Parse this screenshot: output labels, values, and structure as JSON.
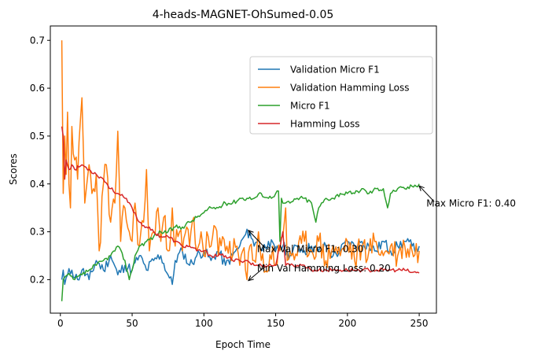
{
  "chart_data": {
    "type": "line",
    "title": "4-heads-MAGNET-OhSumed-0.05",
    "xlabel": "Epoch Time",
    "ylabel": "Scores",
    "xlim": [
      -7,
      262
    ],
    "ylim": [
      0.13,
      0.73
    ],
    "xticks": [
      0,
      50,
      100,
      150,
      200,
      250
    ],
    "yticks": [
      0.2,
      0.3,
      0.4,
      0.5,
      0.6,
      0.7
    ],
    "tick_labels_x": [
      "0",
      "50",
      "100",
      "150",
      "200",
      "250"
    ],
    "tick_labels_y": [
      "0.2",
      "0.3",
      "0.4",
      "0.5",
      "0.6",
      "0.7"
    ],
    "grid": false,
    "legend_position": "upper right",
    "series": [
      {
        "name": "Validation Micro F1",
        "color": "#1f77b4",
        "anchors": [
          [
            1,
            0.2
          ],
          [
            2,
            0.22
          ],
          [
            3,
            0.19
          ],
          [
            5,
            0.21
          ],
          [
            8,
            0.22
          ],
          [
            12,
            0.2
          ],
          [
            15,
            0.22
          ],
          [
            20,
            0.2
          ],
          [
            25,
            0.24
          ],
          [
            30,
            0.22
          ],
          [
            35,
            0.25
          ],
          [
            40,
            0.21
          ],
          [
            45,
            0.23
          ],
          [
            50,
            0.22
          ],
          [
            55,
            0.25
          ],
          [
            60,
            0.22
          ],
          [
            65,
            0.24
          ],
          [
            70,
            0.25
          ],
          [
            75,
            0.21
          ],
          [
            78,
            0.19
          ],
          [
            80,
            0.24
          ],
          [
            85,
            0.26
          ],
          [
            90,
            0.23
          ],
          [
            95,
            0.25
          ],
          [
            100,
            0.26
          ],
          [
            105,
            0.24
          ],
          [
            110,
            0.26
          ],
          [
            115,
            0.23
          ],
          [
            120,
            0.25
          ],
          [
            125,
            0.27
          ],
          [
            128,
            0.29
          ],
          [
            132,
            0.3
          ],
          [
            135,
            0.27
          ],
          [
            138,
            0.29
          ],
          [
            140,
            0.26
          ],
          [
            145,
            0.28
          ],
          [
            150,
            0.26
          ],
          [
            155,
            0.27
          ],
          [
            160,
            0.25
          ],
          [
            165,
            0.27
          ],
          [
            170,
            0.26
          ],
          [
            175,
            0.27
          ],
          [
            180,
            0.26
          ],
          [
            185,
            0.27
          ],
          [
            190,
            0.25
          ],
          [
            195,
            0.26
          ],
          [
            200,
            0.28
          ],
          [
            205,
            0.27
          ],
          [
            210,
            0.28
          ],
          [
            215,
            0.27
          ],
          [
            220,
            0.26
          ],
          [
            225,
            0.28
          ],
          [
            230,
            0.26
          ],
          [
            235,
            0.27
          ],
          [
            240,
            0.28
          ],
          [
            245,
            0.27
          ],
          [
            250,
            0.27
          ]
        ],
        "jitter": 0.012,
        "seed": 11
      },
      {
        "name": "Validation Hamming Loss",
        "color": "#ff7f0e",
        "anchors": [
          [
            1,
            0.7
          ],
          [
            2,
            0.38
          ],
          [
            3,
            0.5
          ],
          [
            4,
            0.42
          ],
          [
            5,
            0.55
          ],
          [
            6,
            0.4
          ],
          [
            7,
            0.35
          ],
          [
            8,
            0.52
          ],
          [
            10,
            0.45
          ],
          [
            12,
            0.41
          ],
          [
            15,
            0.58
          ],
          [
            17,
            0.36
          ],
          [
            20,
            0.44
          ],
          [
            22,
            0.38
          ],
          [
            25,
            0.42
          ],
          [
            27,
            0.26
          ],
          [
            30,
            0.4
          ],
          [
            32,
            0.44
          ],
          [
            35,
            0.32
          ],
          [
            38,
            0.36
          ],
          [
            40,
            0.51
          ],
          [
            42,
            0.28
          ],
          [
            45,
            0.35
          ],
          [
            48,
            0.3
          ],
          [
            50,
            0.28
          ],
          [
            52,
            0.36
          ],
          [
            55,
            0.27
          ],
          [
            58,
            0.32
          ],
          [
            60,
            0.43
          ],
          [
            62,
            0.26
          ],
          [
            65,
            0.3
          ],
          [
            68,
            0.35
          ],
          [
            70,
            0.28
          ],
          [
            72,
            0.33
          ],
          [
            75,
            0.26
          ],
          [
            78,
            0.35
          ],
          [
            80,
            0.27
          ],
          [
            83,
            0.3
          ],
          [
            85,
            0.26
          ],
          [
            88,
            0.31
          ],
          [
            90,
            0.27
          ],
          [
            93,
            0.33
          ],
          [
            95,
            0.26
          ],
          [
            98,
            0.3
          ],
          [
            100,
            0.25
          ],
          [
            103,
            0.29
          ],
          [
            105,
            0.27
          ],
          [
            108,
            0.31
          ],
          [
            110,
            0.25
          ],
          [
            113,
            0.29
          ],
          [
            115,
            0.26
          ],
          [
            118,
            0.28
          ],
          [
            120,
            0.25
          ],
          [
            123,
            0.27
          ],
          [
            125,
            0.23
          ],
          [
            127,
            0.26
          ],
          [
            130,
            0.2
          ],
          [
            132,
            0.27
          ],
          [
            135,
            0.24
          ],
          [
            138,
            0.3
          ],
          [
            140,
            0.24
          ],
          [
            145,
            0.22
          ],
          [
            148,
            0.27
          ],
          [
            150,
            0.23
          ],
          [
            153,
            0.26
          ],
          [
            155,
            0.29
          ],
          [
            157,
            0.35
          ],
          [
            158,
            0.24
          ],
          [
            160,
            0.26
          ],
          [
            165,
            0.25
          ],
          [
            170,
            0.28
          ],
          [
            175,
            0.26
          ],
          [
            180,
            0.28
          ],
          [
            185,
            0.24
          ],
          [
            190,
            0.27
          ],
          [
            195,
            0.25
          ],
          [
            200,
            0.28
          ],
          [
            205,
            0.24
          ],
          [
            210,
            0.27
          ],
          [
            215,
            0.26
          ],
          [
            220,
            0.28
          ],
          [
            225,
            0.25
          ],
          [
            230,
            0.27
          ],
          [
            235,
            0.25
          ],
          [
            240,
            0.27
          ],
          [
            245,
            0.26
          ],
          [
            250,
            0.26
          ]
        ],
        "jitter": 0.03,
        "seed": 23
      },
      {
        "name": "Micro F1",
        "color": "#2ca02c",
        "anchors": [
          [
            1,
            0.155
          ],
          [
            2,
            0.2
          ],
          [
            5,
            0.21
          ],
          [
            10,
            0.2
          ],
          [
            15,
            0.21
          ],
          [
            20,
            0.22
          ],
          [
            25,
            0.23
          ],
          [
            30,
            0.24
          ],
          [
            35,
            0.25
          ],
          [
            40,
            0.27
          ],
          [
            45,
            0.24
          ],
          [
            48,
            0.2
          ],
          [
            50,
            0.22
          ],
          [
            52,
            0.25
          ],
          [
            55,
            0.27
          ],
          [
            60,
            0.28
          ],
          [
            65,
            0.29
          ],
          [
            70,
            0.3
          ],
          [
            75,
            0.3
          ],
          [
            80,
            0.31
          ],
          [
            85,
            0.31
          ],
          [
            90,
            0.32
          ],
          [
            95,
            0.33
          ],
          [
            100,
            0.34
          ],
          [
            105,
            0.35
          ],
          [
            110,
            0.35
          ],
          [
            115,
            0.36
          ],
          [
            120,
            0.36
          ],
          [
            125,
            0.37
          ],
          [
            130,
            0.37
          ],
          [
            135,
            0.37
          ],
          [
            140,
            0.38
          ],
          [
            145,
            0.37
          ],
          [
            150,
            0.38
          ],
          [
            152,
            0.385
          ],
          [
            153,
            0.28
          ],
          [
            154,
            0.37
          ],
          [
            155,
            0.36
          ],
          [
            160,
            0.36
          ],
          [
            165,
            0.37
          ],
          [
            170,
            0.37
          ],
          [
            175,
            0.36
          ],
          [
            178,
            0.32
          ],
          [
            180,
            0.35
          ],
          [
            185,
            0.37
          ],
          [
            190,
            0.37
          ],
          [
            195,
            0.38
          ],
          [
            200,
            0.38
          ],
          [
            205,
            0.38
          ],
          [
            210,
            0.39
          ],
          [
            215,
            0.38
          ],
          [
            220,
            0.39
          ],
          [
            225,
            0.39
          ],
          [
            228,
            0.35
          ],
          [
            230,
            0.38
          ],
          [
            235,
            0.39
          ],
          [
            240,
            0.39
          ],
          [
            245,
            0.395
          ],
          [
            250,
            0.4
          ]
        ],
        "jitter": 0.005,
        "seed": 37
      },
      {
        "name": "Hamming Loss",
        "color": "#d62728",
        "anchors": [
          [
            1,
            0.52
          ],
          [
            2,
            0.5
          ],
          [
            3,
            0.41
          ],
          [
            4,
            0.45
          ],
          [
            6,
            0.43
          ],
          [
            8,
            0.44
          ],
          [
            10,
            0.43
          ],
          [
            15,
            0.44
          ],
          [
            20,
            0.43
          ],
          [
            25,
            0.42
          ],
          [
            30,
            0.41
          ],
          [
            35,
            0.39
          ],
          [
            40,
            0.38
          ],
          [
            45,
            0.37
          ],
          [
            50,
            0.35
          ],
          [
            55,
            0.32
          ],
          [
            60,
            0.31
          ],
          [
            65,
            0.3
          ],
          [
            70,
            0.29
          ],
          [
            75,
            0.29
          ],
          [
            80,
            0.28
          ],
          [
            85,
            0.27
          ],
          [
            90,
            0.27
          ],
          [
            95,
            0.26
          ],
          [
            100,
            0.26
          ],
          [
            105,
            0.25
          ],
          [
            110,
            0.25
          ],
          [
            115,
            0.25
          ],
          [
            120,
            0.24
          ],
          [
            125,
            0.24
          ],
          [
            130,
            0.24
          ],
          [
            135,
            0.23
          ],
          [
            140,
            0.23
          ],
          [
            145,
            0.23
          ],
          [
            150,
            0.23
          ],
          [
            155,
            0.3
          ],
          [
            157,
            0.23
          ],
          [
            160,
            0.23
          ],
          [
            165,
            0.23
          ],
          [
            170,
            0.23
          ],
          [
            175,
            0.22
          ],
          [
            180,
            0.22
          ],
          [
            185,
            0.22
          ],
          [
            190,
            0.22
          ],
          [
            195,
            0.22
          ],
          [
            200,
            0.22
          ],
          [
            205,
            0.22
          ],
          [
            210,
            0.22
          ],
          [
            215,
            0.22
          ],
          [
            220,
            0.22
          ],
          [
            225,
            0.22
          ],
          [
            230,
            0.22
          ],
          [
            235,
            0.22
          ],
          [
            240,
            0.22
          ],
          [
            245,
            0.215
          ],
          [
            250,
            0.214
          ]
        ],
        "jitter": 0.004,
        "seed": 53
      }
    ],
    "annotations": [
      {
        "label": "Max Micro F1: 0.40",
        "point": [
          250,
          0.396
        ],
        "text_at": [
          255,
          0.353
        ]
      },
      {
        "label": "Max Val Micro F1: 0.30",
        "point": [
          131,
          0.303
        ],
        "text_at": [
          137,
          0.257
        ]
      },
      {
        "label": "Min Val Hamming Loss: 0.20",
        "point": [
          131,
          0.198
        ],
        "text_at": [
          137,
          0.217
        ]
      }
    ]
  }
}
